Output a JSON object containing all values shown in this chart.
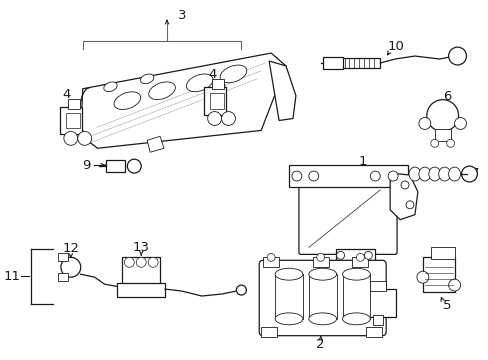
{
  "bg_color": "#ffffff",
  "line_color": "#1a1a1a",
  "gray_color": "#666666",
  "fig_w": 4.89,
  "fig_h": 3.6,
  "dpi": 100
}
